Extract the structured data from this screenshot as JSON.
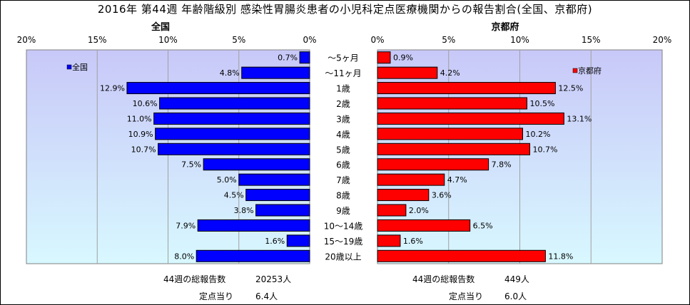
{
  "title": "2016年 第44週 年齢階級別 感染性胃腸炎患者の小児科定点医療機関からの報告割合(全国、京都府)",
  "colors": {
    "national": "#0000ff",
    "kyoto": "#ff0000",
    "bar_stroke": "#000000",
    "plot_bg_top": "#c8c8f8",
    "plot_bg_bottom": "#d8f8ff"
  },
  "chart_data": [
    {
      "type": "bar",
      "orientation": "horizontal",
      "direction": "reversed",
      "title": "全国",
      "series": [
        {
          "name": "全国",
          "values": [
            0.7,
            4.8,
            12.9,
            10.6,
            11.0,
            10.9,
            10.7,
            7.5,
            5.0,
            4.5,
            3.8,
            7.9,
            1.6,
            8.0
          ]
        }
      ],
      "value_labels": [
        "0.7%",
        "4.8%",
        "12.9%",
        "10.6%",
        "11.0%",
        "10.9%",
        "10.7%",
        "7.5%",
        "5.0%",
        "4.5%",
        "3.8%",
        "7.9%",
        "1.6%",
        "8.0%"
      ],
      "xlim": [
        0,
        20
      ],
      "ticks": [
        "0%",
        "5%",
        "10%",
        "15%",
        "20%"
      ],
      "grid": true,
      "legend": "top-left"
    },
    {
      "type": "bar",
      "orientation": "horizontal",
      "title": "京都府",
      "series": [
        {
          "name": "京都府",
          "values": [
            0.9,
            4.2,
            12.5,
            10.5,
            13.1,
            10.2,
            10.7,
            7.8,
            4.7,
            3.6,
            2.0,
            6.5,
            1.6,
            11.8
          ]
        }
      ],
      "value_labels": [
        "0.9%",
        "4.2%",
        "12.5%",
        "10.5%",
        "13.1%",
        "10.2%",
        "10.7%",
        "7.8%",
        "4.7%",
        "3.6%",
        "2.0%",
        "6.5%",
        "1.6%",
        "11.8%"
      ],
      "xlim": [
        0,
        20
      ],
      "ticks": [
        "0%",
        "5%",
        "10%",
        "15%",
        "20%"
      ],
      "grid": true,
      "legend": "top-right"
    }
  ],
  "categories": [
    "～5ヶ月",
    "～11ヶ月",
    "1歳",
    "2歳",
    "3歳",
    "4歳",
    "5歳",
    "6歳",
    "7歳",
    "8歳",
    "9歳",
    "10～14歳",
    "15～19歳",
    "20歳以上"
  ],
  "stats": {
    "national": {
      "total_label": "44週の総報告数",
      "total_value": "20253人",
      "per_label": "定点当り",
      "per_value": "6.4人"
    },
    "kyoto": {
      "total_label": "44週の総報告数",
      "total_value": "449人",
      "per_label": "定点当り",
      "per_value": "6.0人"
    }
  }
}
